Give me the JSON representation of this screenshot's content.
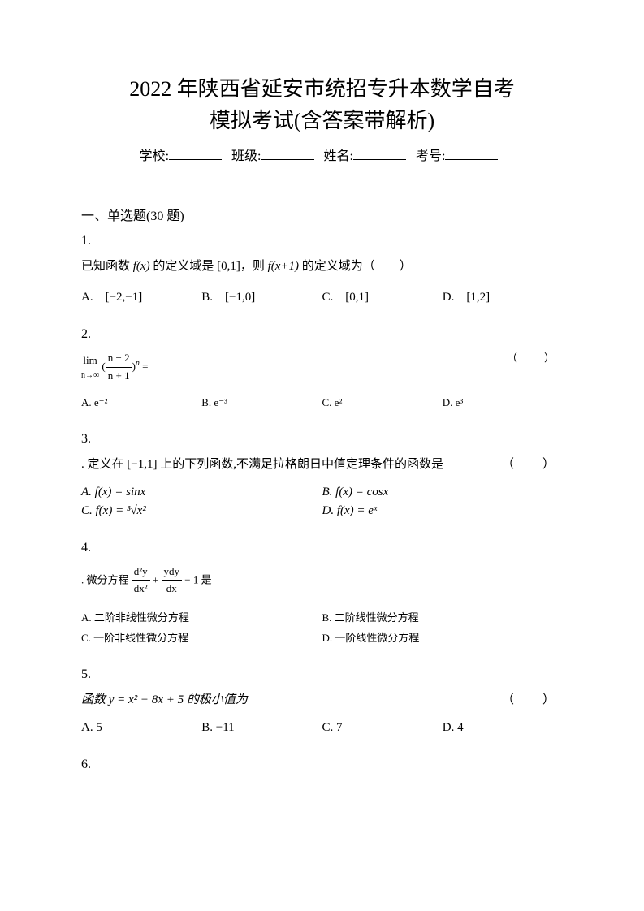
{
  "title_line1": "2022 年陕西省延安市统招专升本数学自考",
  "title_line2": "模拟考试(含答案带解析)",
  "info": {
    "school_label": "学校:",
    "class_label": "班级:",
    "name_label": "姓名:",
    "id_label": "考号:"
  },
  "section_title": "一、单选题(30 题)",
  "questions": {
    "1": {
      "num": "1.",
      "text_pre": "已知函数 ",
      "text_mid": " 的定义域是 [0,1]，则 ",
      "text_post": " 的定义域为（　　）",
      "fx": "f(x)",
      "fx1": "f(x+1)",
      "opts": {
        "A": "A.　[−2,−1]",
        "B": "B.　[−1,0]",
        "C": "C.　[0,1]",
        "D": "D.　[1,2]"
      }
    },
    "2": {
      "num": "2.",
      "lim_top": "lim",
      "lim_bot": "n→∞",
      "frac_num": "n − 2",
      "frac_den": "n + 1",
      "exp": "n",
      "equals": " =",
      "paren": "（　）",
      "opts": {
        "A": "A. e⁻²",
        "B": "B. e⁻³",
        "C": "C. e²",
        "D": "D. e³"
      }
    },
    "3": {
      "num": "3.",
      "text": ". 定义在 [−1,1] 上的下列函数,不满足拉格朗日中值定理条件的函数是",
      "paren": "（　）",
      "opts": {
        "A": "A. f(x) = sinx",
        "B": "B. f(x) = cosx",
        "C_pre": "C. f(x) = ",
        "C_root": "³√x²",
        "D": "D. f(x) = eˣ"
      }
    },
    "4": {
      "num": "4.",
      "text_pre": ". 微分方程 ",
      "frac1_num": "d²y",
      "frac1_den": "dx²",
      "plus": " + ",
      "frac2_num": "ydy",
      "frac2_den": "dx",
      "text_post": " − 1 是",
      "opts": {
        "A": "A. 二阶非线性微分方程",
        "B": "B. 二阶线性微分方程",
        "C": "C. 一阶非线性微分方程",
        "D": "D. 一阶线性微分方程"
      }
    },
    "5": {
      "num": "5.",
      "text": "函数 y = x² − 8x + 5 的极小值为",
      "paren": "（　）",
      "opts": {
        "A": "A. 5",
        "B": "B. −11",
        "C": "C. 7",
        "D": "D. 4"
      }
    },
    "6": {
      "num": "6."
    }
  }
}
